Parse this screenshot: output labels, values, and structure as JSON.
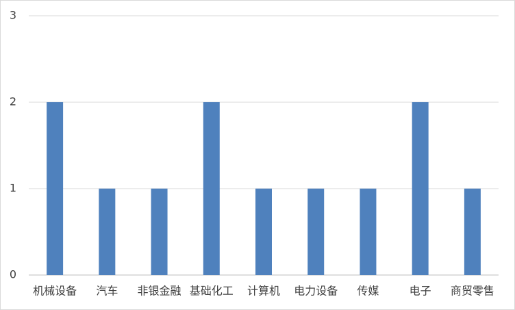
{
  "chart_data": {
    "type": "bar",
    "categories": [
      "机械设备",
      "汽车",
      "非银金融",
      "基础化工",
      "计算机",
      "电力设备",
      "传媒",
      "电子",
      "商贸零售"
    ],
    "values": [
      2,
      1,
      1,
      2,
      1,
      1,
      1,
      2,
      1
    ],
    "color": "#4f81bd",
    "ylim": [
      0,
      3
    ],
    "yticks": [
      0,
      1,
      2,
      3
    ],
    "grid": true
  }
}
